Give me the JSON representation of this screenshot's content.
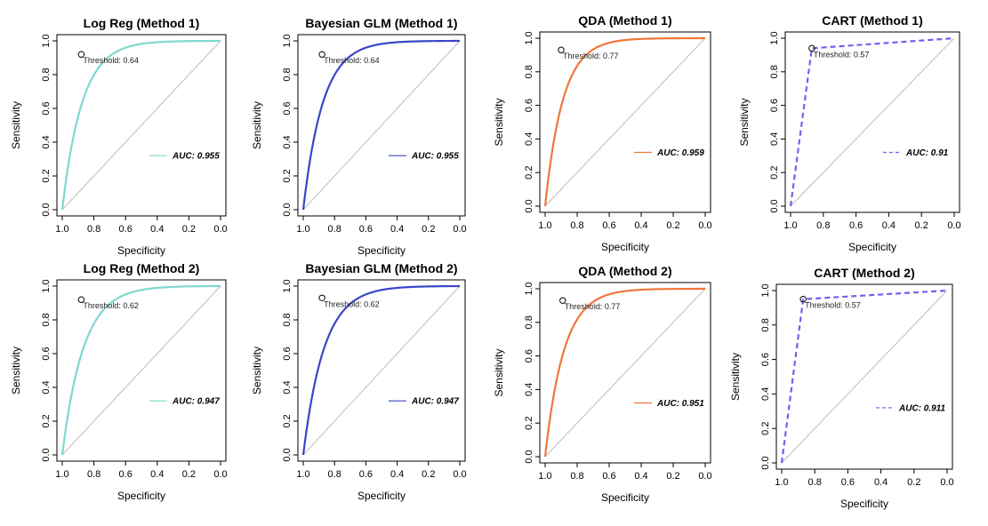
{
  "chart_data": [
    {
      "type": "line",
      "title": "Log Reg (Method 1)",
      "xlabel": "Specificity",
      "ylabel": "Sensitivity",
      "auc_label": "AUC: 0.955",
      "threshold_label": "Threshold: 0.64",
      "threshold_point": {
        "specificity": 0.88,
        "sensitivity": 0.92
      },
      "shape": "smooth",
      "k": 8.0,
      "color": "#7fd8cf",
      "dashed": false,
      "xlim": [
        1.0,
        0.0
      ],
      "ylim": [
        0.0,
        1.0
      ],
      "xticks": [
        "1.0",
        "0.8",
        "0.6",
        "0.4",
        "0.2",
        "0.0"
      ],
      "yticks": [
        "0.0",
        "0.2",
        "0.4",
        "0.6",
        "0.8",
        "1.0"
      ],
      "grid": false,
      "legend": "center-right"
    },
    {
      "type": "line",
      "title": "Bayesian GLM (Method 1)",
      "xlabel": "Specificity",
      "ylabel": "Sensitivity",
      "auc_label": "AUC: 0.955",
      "threshold_label": "Threshold: 0.64",
      "threshold_point": {
        "specificity": 0.88,
        "sensitivity": 0.92
      },
      "shape": "smooth",
      "k": 8.0,
      "color": "#3a45c8",
      "dashed": false,
      "xlim": [
        1.0,
        0.0
      ],
      "ylim": [
        0.0,
        1.0
      ],
      "xticks": [
        "1.0",
        "0.8",
        "0.6",
        "0.4",
        "0.2",
        "0.0"
      ],
      "yticks": [
        "0.0",
        "0.2",
        "0.4",
        "0.6",
        "0.8",
        "1.0"
      ],
      "grid": false,
      "legend": "center-right"
    },
    {
      "type": "line",
      "title": "QDA (Method 1)",
      "xlabel": "Specificity",
      "ylabel": "Sensitivity",
      "auc_label": "AUC: 0.959",
      "threshold_label": "Threshold: 0.77",
      "threshold_point": {
        "specificity": 0.9,
        "sensitivity": 0.93
      },
      "shape": "smooth",
      "k": 9.0,
      "color": "#f0773b",
      "dashed": false,
      "xlim": [
        1.0,
        0.0
      ],
      "ylim": [
        0.0,
        1.0
      ],
      "xticks": [
        "1.0",
        "0.8",
        "0.6",
        "0.4",
        "0.2",
        "0.0"
      ],
      "yticks": [
        "0.0",
        "0.2",
        "0.4",
        "0.6",
        "0.8",
        "1.0"
      ],
      "grid": false,
      "legend": "center-right"
    },
    {
      "type": "line",
      "title": "CART (Method 1)",
      "xlabel": "Specificity",
      "ylabel": "Sensitivity",
      "auc_label": "AUC: 0.91",
      "threshold_label": "Threshold: 0.57",
      "threshold_point": {
        "specificity": 0.87,
        "sensitivity": 0.94
      },
      "shape": "segment",
      "color": "#7b5cf0",
      "dashed": true,
      "xlim": [
        1.0,
        0.0
      ],
      "ylim": [
        0.0,
        1.0
      ],
      "xticks": [
        "1.0",
        "0.8",
        "0.6",
        "0.4",
        "0.2",
        "0.0"
      ],
      "yticks": [
        "0.0",
        "0.2",
        "0.4",
        "0.6",
        "0.8",
        "1.0"
      ],
      "grid": false,
      "legend": "center-right"
    },
    {
      "type": "line",
      "title": "Log Reg (Method 2)",
      "xlabel": "Specificity",
      "ylabel": "Sensitivity",
      "auc_label": "AUC: 0.947",
      "threshold_label": "Threshold: 0.62",
      "threshold_point": {
        "specificity": 0.88,
        "sensitivity": 0.92
      },
      "shape": "smooth",
      "k": 7.5,
      "color": "#7fd8cf",
      "dashed": false,
      "xlim": [
        1.0,
        0.0
      ],
      "ylim": [
        0.0,
        1.0
      ],
      "xticks": [
        "1.0",
        "0.8",
        "0.6",
        "0.4",
        "0.2",
        "0.0"
      ],
      "yticks": [
        "0.0",
        "0.2",
        "0.4",
        "0.6",
        "0.8",
        "1.0"
      ],
      "grid": false,
      "legend": "center-right"
    },
    {
      "type": "line",
      "title": "Bayesian GLM (Method 2)",
      "xlabel": "Specificity",
      "ylabel": "Sensitivity",
      "auc_label": "AUC: 0.947",
      "threshold_label": "Threshold: 0.62",
      "threshold_point": {
        "specificity": 0.88,
        "sensitivity": 0.93
      },
      "shape": "smooth",
      "k": 7.5,
      "color": "#3a45c8",
      "dashed": false,
      "xlim": [
        1.0,
        0.0
      ],
      "ylim": [
        0.0,
        1.0
      ],
      "xticks": [
        "1.0",
        "0.8",
        "0.6",
        "0.4",
        "0.2",
        "0.0"
      ],
      "yticks": [
        "0.0",
        "0.2",
        "0.4",
        "0.6",
        "0.8",
        "1.0"
      ],
      "grid": false,
      "legend": "center-right"
    },
    {
      "type": "line",
      "title": "QDA (Method 2)",
      "xlabel": "Specificity",
      "ylabel": "Sensitivity",
      "auc_label": "AUC: 0.951",
      "threshold_label": "Threshold: 0.77",
      "threshold_point": {
        "specificity": 0.89,
        "sensitivity": 0.93
      },
      "shape": "smooth",
      "k": 8.5,
      "color": "#f0773b",
      "dashed": false,
      "xlim": [
        1.0,
        0.0
      ],
      "ylim": [
        0.0,
        1.0
      ],
      "xticks": [
        "1.0",
        "0.8",
        "0.6",
        "0.4",
        "0.2",
        "0.0"
      ],
      "yticks": [
        "0.0",
        "0.2",
        "0.4",
        "0.6",
        "0.8",
        "1.0"
      ],
      "grid": false,
      "legend": "center-right"
    },
    {
      "type": "line",
      "title": "CART (Method 2)",
      "xlabel": "Specificity",
      "ylabel": "Sensitivity",
      "auc_label": "AUC: 0.911",
      "threshold_label": "Threshold: 0.57",
      "threshold_point": {
        "specificity": 0.87,
        "sensitivity": 0.95
      },
      "shape": "segment",
      "color": "#7b5cf0",
      "dashed": true,
      "xlim": [
        1.0,
        0.0
      ],
      "ylim": [
        0.0,
        1.0
      ],
      "xticks": [
        "1.0",
        "0.8",
        "0.6",
        "0.4",
        "0.2",
        "0.0"
      ],
      "yticks": [
        "0.0",
        "0.2",
        "0.4",
        "0.6",
        "0.8",
        "1.0"
      ],
      "grid": false,
      "legend": "center-right"
    }
  ]
}
